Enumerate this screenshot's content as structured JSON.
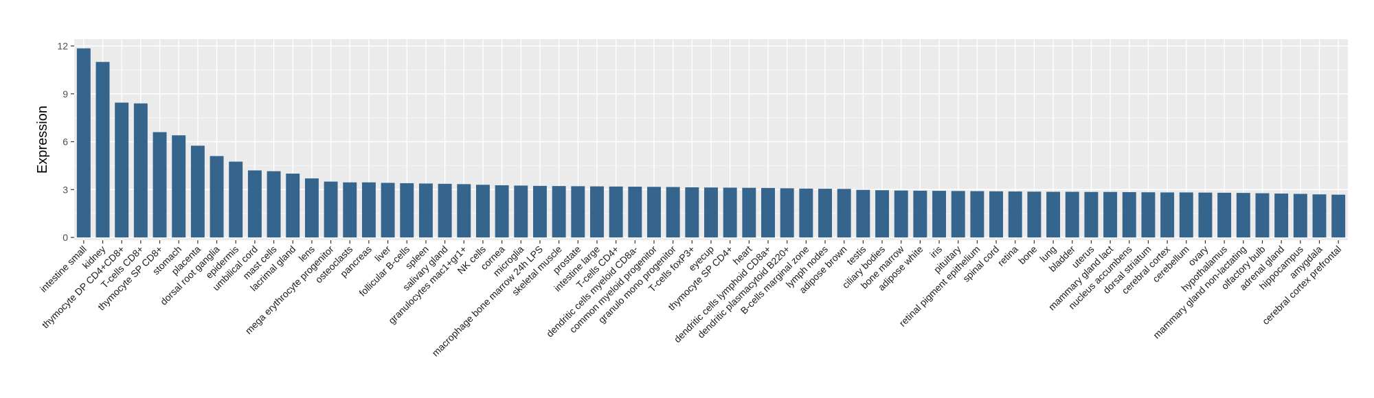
{
  "colors": {
    "bar": "#35648C",
    "panel": "#EBEBEB",
    "grid_major": "#FFFFFF",
    "grid_minor": "#F5F5F5",
    "tick": "#333333"
  },
  "chart_data": {
    "type": "bar",
    "title": "",
    "xlabel": "",
    "ylabel": "Expression",
    "ylim": [
      0,
      12.5
    ],
    "yticks": [
      0,
      3,
      6,
      9,
      12
    ],
    "grid": true,
    "legend": "none",
    "categories": [
      "intestine small",
      "kidney",
      "thymocyte DP CD4+CD8+",
      "T-cells CD8+",
      "thymocyte SP CD8+",
      "stomach",
      "placenta",
      "dorsal root ganglia",
      "epidermis",
      "umbilical cord",
      "mast cells",
      "lacrimal gland",
      "lens",
      "mega erythrocyte progenitor",
      "osteoclasts",
      "pancreas",
      "liver",
      "follicular B-cells",
      "spleen",
      "salivary gland",
      "granulocytes mac1+gr1+",
      "NK cells",
      "cornea",
      "microglia",
      "macrophage bone marrow 24h LPS",
      "skeletal muscle",
      "prostate",
      "intestine large",
      "T-cells CD4+",
      "dendritic cells myeloid CD8a-",
      "common myeloid progenitor",
      "granulo mono progenitor",
      "T-cells foxP3+",
      "eyecup",
      "thymocyte SP CD4+",
      "heart",
      "dendritic cells lymphoid CD8a+",
      "dendritic plasmacytoid B220+",
      "B-cells marginal zone",
      "lymph nodes",
      "adipose brown",
      "testis",
      "ciliary bodies",
      "bone marrow",
      "adipose white",
      "iris",
      "pituitary",
      "retinal pigment epithelium",
      "spinal cord",
      "retina",
      "bone",
      "lung",
      "bladder",
      "uterus",
      "mammary gland lact",
      "nucleus accumbens",
      "dorsal striatum",
      "cerebral cortex",
      "cerebellum",
      "ovary",
      "hypothalamus",
      "mammary gland non-lactating",
      "olfactory bulb",
      "adrenal gland",
      "hippocampus",
      "amygdala",
      "cerebral cortex prefrontal"
    ],
    "values": [
      11.85,
      11.0,
      8.45,
      8.4,
      6.6,
      6.4,
      5.75,
      5.1,
      4.75,
      4.2,
      4.15,
      4.0,
      3.7,
      3.5,
      3.45,
      3.45,
      3.42,
      3.4,
      3.38,
      3.36,
      3.34,
      3.3,
      3.27,
      3.25,
      3.23,
      3.22,
      3.21,
      3.2,
      3.19,
      3.18,
      3.17,
      3.16,
      3.14,
      3.13,
      3.12,
      3.11,
      3.1,
      3.08,
      3.06,
      3.05,
      3.04,
      2.98,
      2.96,
      2.94,
      2.93,
      2.92,
      2.91,
      2.9,
      2.89,
      2.88,
      2.87,
      2.86,
      2.86,
      2.85,
      2.85,
      2.84,
      2.83,
      2.82,
      2.82,
      2.81,
      2.8,
      2.79,
      2.77,
      2.75,
      2.73,
      2.7,
      2.68
    ]
  }
}
